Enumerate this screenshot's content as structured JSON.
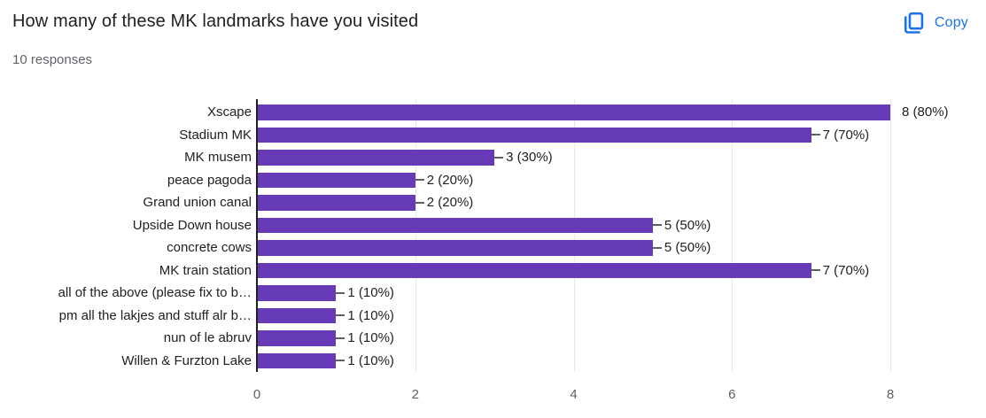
{
  "header": {
    "title": "How many of these MK landmarks have you visited",
    "subtitle": "10 responses",
    "copy_label": "Copy"
  },
  "colors": {
    "bar": "#673ab7",
    "accent_blue": "#1a73e8",
    "axis_line": "#212121",
    "gridline": "#e8e8e8",
    "tick_text": "#616161",
    "label_text": "#212121",
    "connector": "#5f5f5f"
  },
  "chart_data": {
    "type": "bar",
    "orientation": "horizontal",
    "title": "How many of these MK landmarks have you visited",
    "subtitle": "10 responses",
    "categories": [
      "Xscape",
      "Stadium MK",
      "MK musem",
      "peace pagoda",
      "Grand union canal",
      "Upside Down house",
      "concrete cows",
      "MK train station",
      "all of the above (please fix to b…",
      "pm all the lakjes and stuff alr b…",
      "nun of le abruv",
      "Willen & Furzton Lake"
    ],
    "values": [
      8,
      7,
      3,
      2,
      2,
      5,
      5,
      7,
      1,
      1,
      1,
      1
    ],
    "value_labels": [
      "8 (80%)",
      "7 (70%)",
      "3 (30%)",
      "2 (20%)",
      "2 (20%)",
      "5 (50%)",
      "5 (50%)",
      "7 (70%)",
      "1 (10%)",
      "1 (10%)",
      "1 (10%)",
      "1 (10%)"
    ],
    "x_ticks": [
      0,
      2,
      4,
      6,
      8
    ],
    "xlim": [
      0,
      8
    ],
    "grid": true,
    "legend": "none",
    "xlabel": "",
    "ylabel": ""
  }
}
